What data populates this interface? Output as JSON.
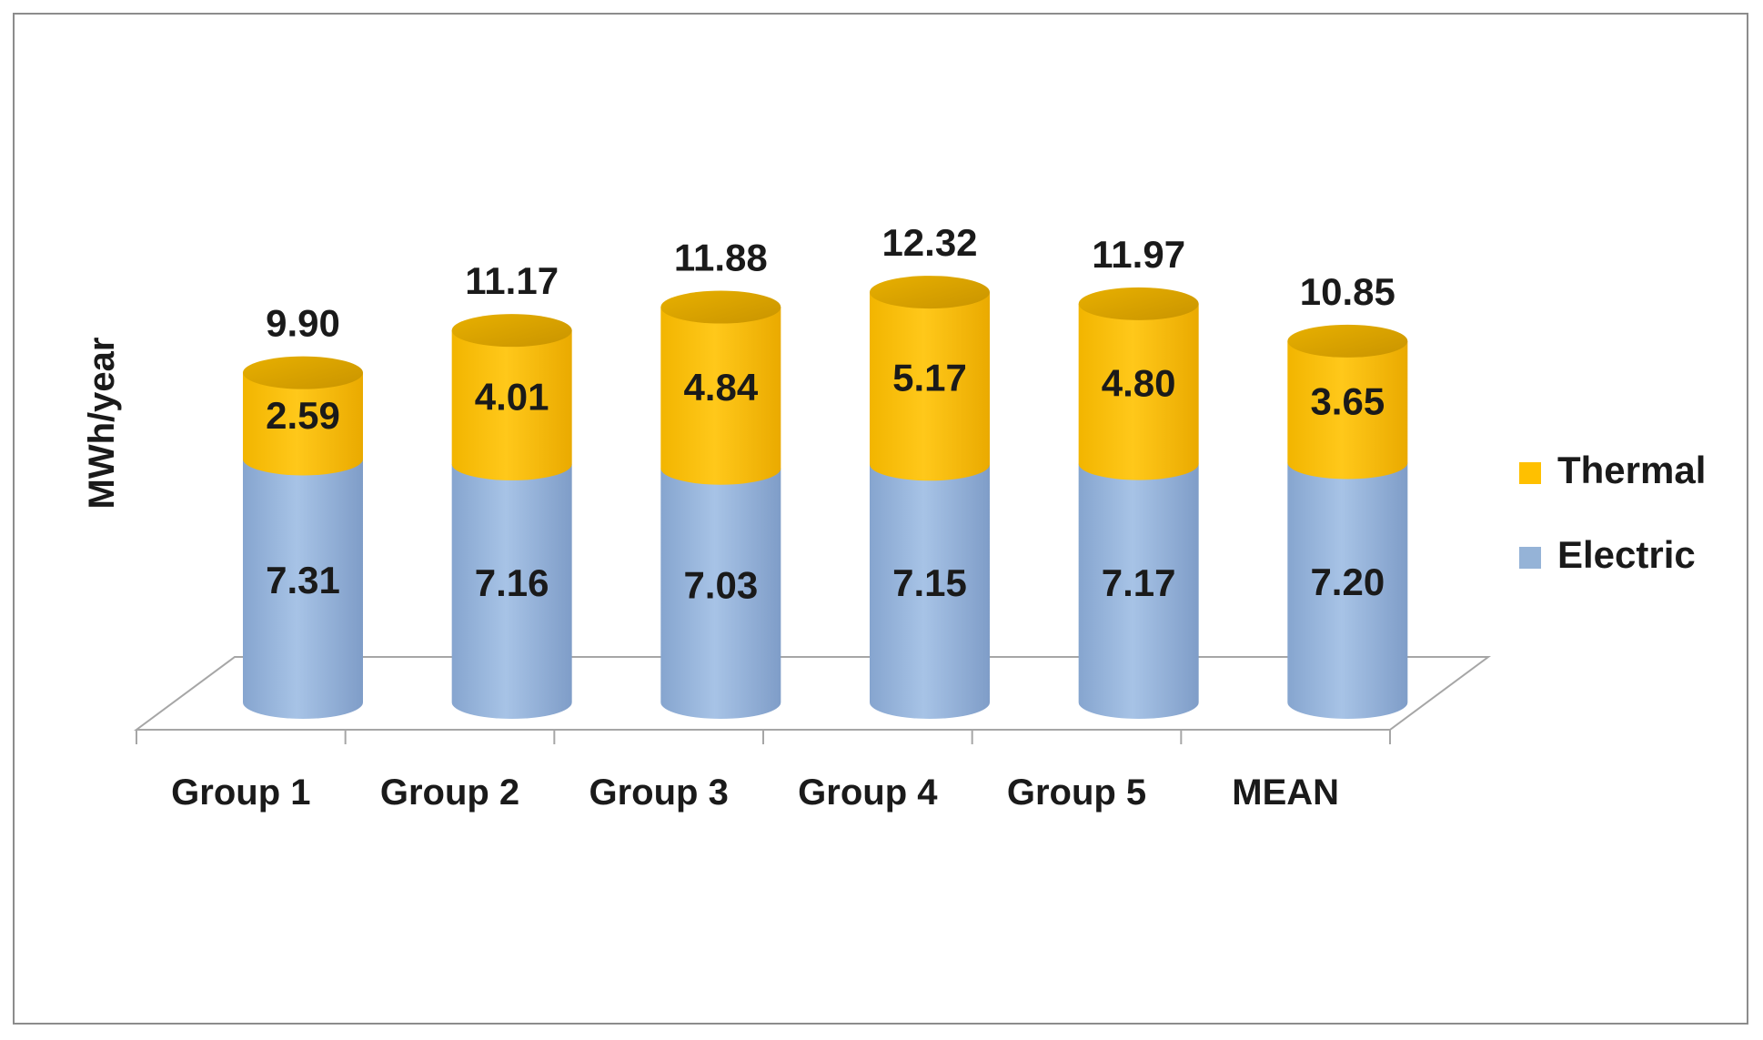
{
  "chart_data": {
    "type": "bar",
    "stacked": true,
    "style": "3d-cylinder",
    "title": "",
    "xlabel": "",
    "ylabel": "MWh/year",
    "categories": [
      "Group 1",
      "Group 2",
      "Group 3",
      "Group 4",
      "Group 5",
      "MEAN"
    ],
    "series": [
      {
        "name": "Electric",
        "color": "#95B3D7",
        "values": [
          7.31,
          7.16,
          7.03,
          7.15,
          7.17,
          7.2
        ],
        "labels": [
          "7.31",
          "7.16",
          "7.03",
          "7.15",
          "7.17",
          "7.20"
        ]
      },
      {
        "name": "Thermal",
        "color": "#FFC000",
        "values": [
          2.59,
          4.01,
          4.84,
          5.17,
          4.8,
          3.65
        ],
        "labels": [
          "2.59",
          "4.01",
          "4.84",
          "5.17",
          "4.80",
          "3.65"
        ]
      }
    ],
    "totals": [
      9.9,
      11.17,
      11.88,
      12.32,
      11.97,
      10.85
    ],
    "total_labels": [
      "9.90",
      "11.17",
      "11.88",
      "12.32",
      "11.97",
      "10.85"
    ],
    "legend": {
      "position": "right",
      "entries": [
        {
          "name": "Thermal",
          "color": "#FFC000"
        },
        {
          "name": "Electric",
          "color": "#95B3D7"
        }
      ]
    },
    "grid": false,
    "yaxis_visible": false
  }
}
